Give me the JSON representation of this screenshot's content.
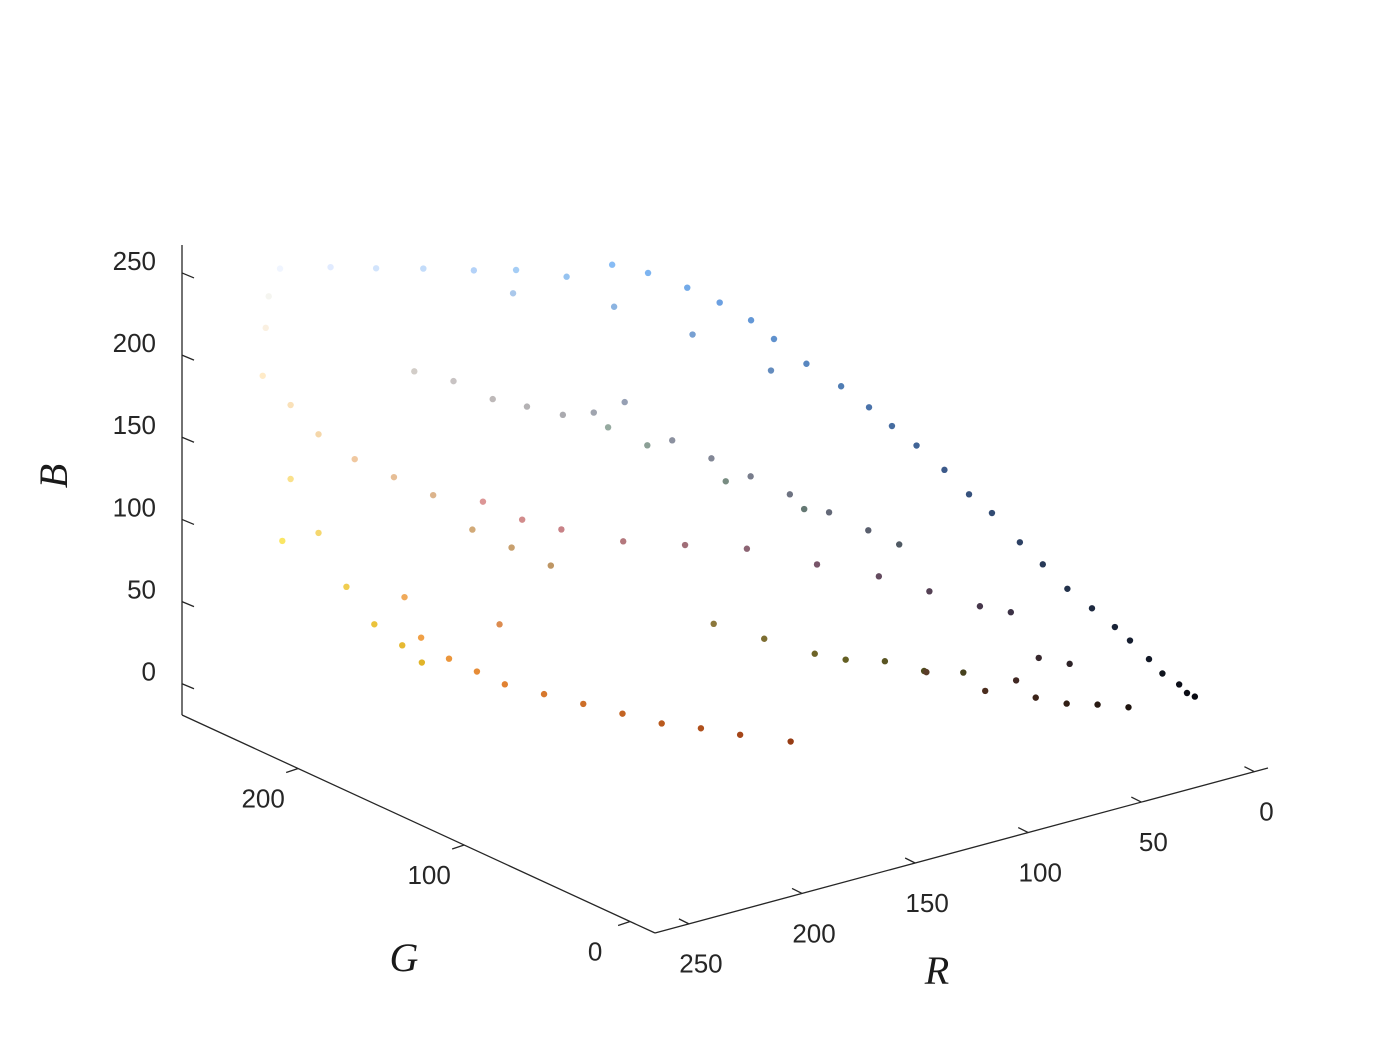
{
  "chart_data": {
    "type": "scatter3d",
    "xlabel": "R",
    "ylabel": "G",
    "zlabel": "B",
    "xlim": [
      -6,
      265
    ],
    "ylim": [
      -15,
      270
    ],
    "zlim": [
      -19,
      267
    ],
    "xticks": [
      0,
      50,
      100,
      150,
      200,
      250
    ],
    "yticks": [
      0,
      100,
      200
    ],
    "zticks": [
      0,
      50,
      100,
      150,
      200,
      250
    ],
    "x": [
      8,
      12,
      15,
      10,
      18,
      22,
      25,
      30,
      35,
      40,
      45,
      50,
      55,
      60,
      65,
      70,
      75,
      80,
      88,
      95,
      100,
      108,
      115,
      125,
      135,
      150,
      165,
      180,
      195,
      210,
      225,
      240,
      170,
      140,
      120,
      100,
      150,
      160,
      140,
      130,
      170,
      180,
      120,
      110,
      100,
      90,
      80,
      190,
      200,
      210,
      140,
      150,
      120,
      100,
      210,
      220,
      200,
      180,
      160,
      140,
      120,
      100,
      85,
      70,
      60,
      230,
      240,
      220,
      210,
      200,
      190,
      245,
      250,
      255,
      250,
      245,
      250,
      245,
      240,
      235,
      230,
      250,
      225,
      240,
      235,
      230,
      225,
      215,
      205,
      195,
      185,
      175,
      165,
      150,
      240,
      220,
      140,
      125,
      110,
      100,
      90,
      80,
      70,
      90,
      75,
      60,
      50,
      40,
      30,
      65,
      55,
      45
    ],
    "y": [
      10,
      14,
      20,
      12,
      24,
      30,
      35,
      42,
      50,
      58,
      65,
      75,
      82,
      90,
      100,
      108,
      115,
      125,
      135,
      145,
      152,
      160,
      170,
      180,
      188,
      195,
      205,
      210,
      220,
      228,
      235,
      245,
      200,
      180,
      160,
      140,
      160,
      165,
      145,
      135,
      170,
      178,
      125,
      115,
      105,
      95,
      90,
      185,
      195,
      205,
      160,
      170,
      140,
      120,
      140,
      150,
      130,
      120,
      110,
      100,
      85,
      75,
      65,
      55,
      50,
      190,
      200,
      180,
      170,
      160,
      150,
      215,
      225,
      235,
      240,
      245,
      225,
      215,
      205,
      195,
      185,
      230,
      180,
      160,
      150,
      140,
      130,
      120,
      110,
      100,
      90,
      80,
      70,
      60,
      170,
      140,
      120,
      110,
      100,
      95,
      85,
      75,
      65,
      60,
      45,
      35,
      30,
      25,
      20,
      40,
      40,
      35
    ],
    "z": [
      18,
      25,
      30,
      20,
      38,
      48,
      55,
      65,
      75,
      88,
      100,
      115,
      125,
      138,
      150,
      160,
      170,
      180,
      192,
      205,
      215,
      225,
      232,
      240,
      245,
      240,
      245,
      248,
      250,
      252,
      255,
      255,
      235,
      225,
      210,
      190,
      180,
      175,
      160,
      150,
      175,
      180,
      140,
      130,
      120,
      110,
      100,
      185,
      195,
      200,
      150,
      160,
      130,
      115,
      140,
      150,
      135,
      125,
      120,
      115,
      105,
      95,
      85,
      75,
      70,
      150,
      160,
      140,
      120,
      110,
      100,
      170,
      185,
      200,
      225,
      240,
      140,
      110,
      80,
      60,
      50,
      100,
      40,
      70,
      60,
      55,
      50,
      45,
      40,
      35,
      30,
      28,
      25,
      20,
      90,
      80,
      60,
      50,
      40,
      35,
      35,
      30,
      30,
      40,
      30,
      25,
      20,
      18,
      15,
      35,
      45,
      40
    ]
  }
}
